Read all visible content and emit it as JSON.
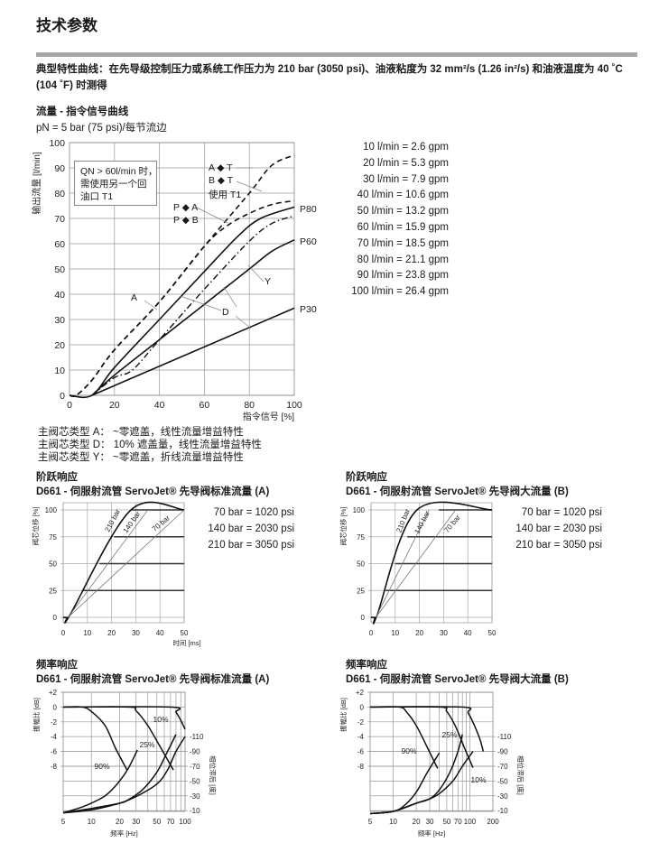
{
  "title": "技术参数",
  "intro": [
    "典型特性曲线：在先导级控制压力或系统工作压力为 210 bar (3050 psi)、油液粘度为 32 mm²/s (1.26 in²/s) 和油液温度为 40 ˚C",
    "(104 ˚F) 时测得"
  ],
  "flow": {
    "heading": "流量 - 指令信号曲线",
    "pn": "pN = 5 bar (75 psi)/每节流边",
    "note": [
      "QN > 60l/min 时，",
      "需使用另一个回",
      "油口 T1"
    ],
    "labels": {
      "at": "A ◆ T",
      "bt": "B ◆ T",
      "t1": "使用 T1",
      "pa": "P ◆ A",
      "pb": "P ◆ B",
      "p80": "P80",
      "p60": "P60",
      "p30": "P30",
      "y": "Y",
      "a": "A",
      "d": "D"
    },
    "conversion": [
      "10 l/min  =   2.6 gpm",
      "20 l/min  =   5.3 gpm",
      "30 l/min  =   7.9 gpm",
      "40 l/min  = 10.6 gpm",
      "50 l/min  = 13.2 gpm",
      "60 l/min  = 15.9 gpm",
      "70 l/min  = 18.5 gpm",
      "80 l/min  = 21.1 gpm",
      "90 l/min  = 23.8 gpm",
      "100 l/min  = 26.4 gpm"
    ],
    "legend": [
      "主阀芯类型 A：  ~零遮盖，线性流量增益特性",
      "主阀芯类型 D：  10% 遮盖量，线性流量增益特性",
      "主阀芯类型 Y：  ~零遮盖，折线流量增益特性"
    ]
  },
  "step": {
    "heading": "阶跃响应",
    "a_title": "D661 - 伺服射流管 ServoJet® 先导阀标准流量 (A)",
    "b_title": "D661 - 伺服射流管 ServoJet® 先导阀大流量 (B)",
    "psi": [
      "70 bar = 1020 psi",
      "140 bar = 2030 psi",
      "210 bar = 3050 psi"
    ]
  },
  "freq": {
    "heading": "频率响应",
    "a_title": "D661 - 伺服射流管 ServoJet® 先导阀标准流量 (A)",
    "b_title": "D661 - 伺服射流管 ServoJet® 先导阀大流量 (B)"
  },
  "chart_data": [
    {
      "type": "line",
      "xlabel": "指令信号 [%]",
      "ylabel": "输出流量 [l/min]",
      "xlim": [
        0,
        100
      ],
      "ylim": [
        0,
        100
      ],
      "grid": true,
      "xticks": [
        0,
        20,
        40,
        60,
        80,
        100
      ],
      "yticks": [
        0,
        10,
        20,
        30,
        40,
        50,
        60,
        70,
        80,
        90,
        100
      ],
      "series": [
        {
          "name": "A ◆ T / B ◆ T",
          "style": "dashed",
          "points": [
            [
              0,
              0
            ],
            [
              3,
              0
            ],
            [
              10,
              6
            ],
            [
              20,
              18
            ],
            [
              40,
              37
            ],
            [
              60,
              59
            ],
            [
              80,
              80
            ],
            [
              90,
              91
            ],
            [
              100,
              95
            ]
          ]
        },
        {
          "name": "P ◆ A / P ◆ B",
          "style": "dashed",
          "points": [
            [
              0,
              0
            ],
            [
              3,
              0
            ],
            [
              10,
              6
            ],
            [
              20,
              18
            ],
            [
              40,
              37
            ],
            [
              60,
              59
            ],
            [
              70,
              67
            ],
            [
              80,
              72
            ],
            [
              90,
              75.5
            ],
            [
              100,
              77
            ]
          ]
        },
        {
          "name": "P80",
          "style": "solid",
          "points": [
            [
              0,
              0
            ],
            [
              10,
              0
            ],
            [
              20,
              11
            ],
            [
              40,
              30
            ],
            [
              60,
              49
            ],
            [
              75,
              63
            ],
            [
              85,
              70
            ],
            [
              100,
              74.5
            ]
          ]
        },
        {
          "name": "Y",
          "style": "dashdot",
          "points": [
            [
              10,
              0
            ],
            [
              20,
              7
            ],
            [
              28,
              10
            ],
            [
              40,
              22
            ],
            [
              60,
              42
            ],
            [
              80,
              61
            ],
            [
              90,
              68
            ],
            [
              100,
              71
            ]
          ]
        },
        {
          "name": "P60",
          "style": "solid",
          "points": [
            [
              10,
              0
            ],
            [
              20,
              8
            ],
            [
              40,
              22
            ],
            [
              60,
              36
            ],
            [
              80,
              50
            ],
            [
              90,
              57
            ],
            [
              100,
              61.5
            ]
          ]
        },
        {
          "name": "P30",
          "style": "solid",
          "points": [
            [
              10,
              0
            ],
            [
              100,
              34.5
            ]
          ]
        }
      ]
    },
    {
      "type": "line",
      "xlabel": "时间 [ms]",
      "ylabel": "阀芯位移 [%]",
      "xlim": [
        0,
        50
      ],
      "ylim": [
        0,
        100
      ],
      "grid": true,
      "xticks": [
        0,
        10,
        20,
        30,
        40,
        50
      ],
      "yticks": [
        0,
        25,
        50,
        75,
        100
      ],
      "series": [
        {
          "name": "210 bar",
          "style": "solid",
          "points": [
            [
              0,
              0
            ],
            [
              1.5,
              0
            ],
            [
              3,
              3
            ],
            [
              28,
              100
            ],
            [
              50,
              100
            ]
          ]
        },
        {
          "name": "140 bar",
          "style": "thin",
          "points": [
            [
              2,
              0
            ],
            [
              35,
              100
            ]
          ]
        },
        {
          "name": "70 bar",
          "style": "thin",
          "points": [
            [
              2,
              0
            ],
            [
              50,
              100
            ]
          ]
        }
      ],
      "levels": [
        {
          "y": 25,
          "from": 8
        },
        {
          "y": 50,
          "from": 15
        },
        {
          "y": 75,
          "from": 21
        }
      ]
    },
    {
      "type": "line",
      "xlabel": "时间 [ms]",
      "ylabel": "阀芯位移 [%]",
      "xlim": [
        0,
        50
      ],
      "ylim": [
        0,
        100
      ],
      "grid": true,
      "xticks": [
        0,
        10,
        20,
        30,
        40,
        50
      ],
      "yticks": [
        0,
        25,
        50,
        75,
        100
      ],
      "series": [
        {
          "name": "210 bar",
          "style": "solid",
          "points": [
            [
              0,
              0
            ],
            [
              1.5,
              0
            ],
            [
              2.5,
              2
            ],
            [
              19,
              100
            ],
            [
              50,
              100
            ]
          ]
        },
        {
          "name": "140 bar",
          "style": "thin",
          "points": [
            [
              2,
              0
            ],
            [
              24,
              100
            ]
          ]
        },
        {
          "name": "70 bar",
          "style": "thin",
          "points": [
            [
              2,
              0
            ],
            [
              35,
              100
            ]
          ]
        }
      ],
      "levels": [
        {
          "y": 25,
          "from": 6
        },
        {
          "y": 50,
          "from": 10
        },
        {
          "y": 75,
          "from": 15
        }
      ]
    },
    {
      "type": "line",
      "xscale": "log",
      "xlabel": "频率 [Hz]",
      "ylabel": "振幅比 [dB]",
      "y2label": "相位滞后 [度]",
      "xlim": [
        5,
        100
      ],
      "ylim": [
        -14.1,
        2
      ],
      "xticks": [
        5,
        10,
        20,
        30,
        50,
        70,
        100
      ],
      "xgrid": [
        10,
        20,
        30,
        40,
        50,
        60,
        70,
        80,
        90
      ],
      "yticks": [
        2,
        0,
        -2,
        -4,
        -6,
        -8
      ],
      "y2ticks": [
        -110,
        -90,
        -70,
        -50,
        -30,
        -10
      ],
      "amplitude": [
        {
          "name": "90%",
          "points": [
            [
              5,
              0
            ],
            [
              8,
              0
            ],
            [
              10,
              -0.6
            ],
            [
              14,
              -2.5
            ],
            [
              18,
              -5.5
            ],
            [
              24,
              -8.5
            ]
          ]
        },
        {
          "name": "25%",
          "points": [
            [
              5,
              0
            ],
            [
              25,
              0
            ],
            [
              30,
              -0.5
            ],
            [
              40,
              -2.5
            ],
            [
              55,
              -5.5
            ],
            [
              75,
              -8.5
            ]
          ]
        },
        {
          "name": "10%",
          "points": [
            [
              5,
              0
            ],
            [
              70,
              0
            ],
            [
              80,
              -0.7
            ],
            [
              90,
              -1.8
            ],
            [
              100,
              -3
            ]
          ]
        }
      ],
      "phase": [
        {
          "name": "90%",
          "points": [
            [
              5,
              -7
            ],
            [
              8,
              -15
            ],
            [
              12,
              -25
            ],
            [
              15,
              -33
            ],
            [
              20,
              -50
            ],
            [
              25,
              -68
            ],
            [
              31,
              -92
            ]
          ]
        },
        {
          "name": "25%",
          "points": [
            [
              5,
              -7
            ],
            [
              10,
              -13
            ],
            [
              20,
              -20
            ],
            [
              25,
              -25
            ],
            [
              35,
              -38
            ],
            [
              50,
              -62
            ],
            [
              65,
              -90
            ],
            [
              80,
              -113
            ]
          ]
        },
        {
          "name": "10%",
          "points": [
            [
              5,
              -7
            ],
            [
              10,
              -11
            ],
            [
              20,
              -20
            ],
            [
              30,
              -29
            ],
            [
              50,
              -46
            ],
            [
              65,
              -65
            ],
            [
              80,
              -90
            ],
            [
              100,
              -110
            ]
          ]
        }
      ]
    },
    {
      "type": "line",
      "xscale": "log",
      "xlabel": "频率 [Hz]",
      "ylabel": "振幅比 [dB]",
      "y2label": "相位滞后 [度]",
      "xlim": [
        5,
        200
      ],
      "ylim": [
        -14.1,
        2
      ],
      "xticks": [
        5,
        10,
        20,
        30,
        50,
        70,
        100,
        200
      ],
      "xgrid": [
        10,
        20,
        30,
        40,
        50,
        60,
        70,
        80,
        90,
        100
      ],
      "yticks": [
        2,
        0,
        -2,
        -4,
        -6,
        -8
      ],
      "y2ticks": [
        -110,
        -90,
        -70,
        -50,
        -30,
        -10
      ],
      "amplitude": [
        {
          "name": "90%",
          "points": [
            [
              5,
              0
            ],
            [
              12,
              0
            ],
            [
              15,
              -0.7
            ],
            [
              20,
              -2.5
            ],
            [
              28,
              -5.5
            ],
            [
              38,
              -8.3
            ]
          ]
        },
        {
          "name": "25%",
          "points": [
            [
              5,
              0
            ],
            [
              40,
              0
            ],
            [
              50,
              -0.6
            ],
            [
              65,
              -2.6
            ],
            [
              85,
              -5.5
            ],
            [
              110,
              -8.2
            ]
          ]
        },
        {
          "name": "10%",
          "points": [
            [
              5,
              0
            ],
            [
              80,
              0
            ],
            [
              95,
              -0.8
            ],
            [
              115,
              -2.5
            ],
            [
              135,
              -4.3
            ],
            [
              150,
              -6
            ]
          ]
        }
      ],
      "phase": [
        {
          "name": "90%",
          "points": [
            [
              5,
              -6
            ],
            [
              10,
              -9
            ],
            [
              14,
              -17
            ],
            [
              20,
              -35
            ],
            [
              28,
              -62
            ],
            [
              40,
              -88
            ]
          ]
        },
        {
          "name": "25%",
          "points": [
            [
              5,
              -6
            ],
            [
              10,
              -9
            ],
            [
              20,
              -20
            ],
            [
              30,
              -26
            ],
            [
              40,
              -38
            ],
            [
              55,
              -62
            ],
            [
              70,
              -90
            ],
            [
              80,
              -113
            ]
          ]
        },
        {
          "name": "10%",
          "points": [
            [
              5,
              -6
            ],
            [
              10,
              -9
            ],
            [
              20,
              -20
            ],
            [
              30,
              -26
            ],
            [
              40,
              -33
            ],
            [
              60,
              -50
            ],
            [
              80,
              -70
            ],
            [
              110,
              -90
            ]
          ]
        }
      ]
    }
  ]
}
